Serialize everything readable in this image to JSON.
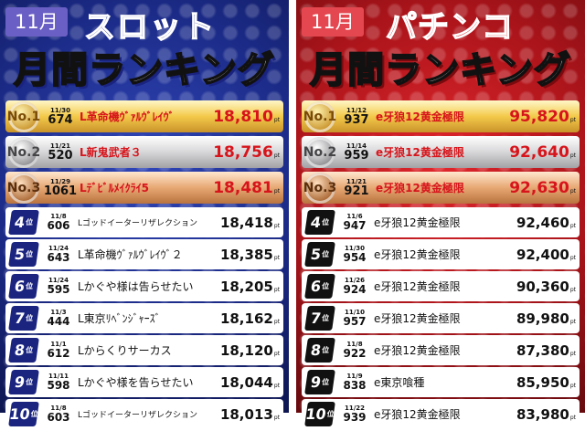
{
  "slot": {
    "month": "11月",
    "title_line1": "スロット",
    "title_line2": "月間ランキング",
    "unit": "pt",
    "rank_suffix": "位",
    "entries": [
      {
        "rank": "1",
        "medal": "No.1",
        "date": "11/30",
        "count": "674",
        "machine": "L革命機ｳﾞｧﾙｳﾞﾚｲｳﾞ",
        "points": "18,810"
      },
      {
        "rank": "2",
        "medal": "No.2",
        "date": "11/21",
        "count": "520",
        "machine": "L新鬼武者３",
        "points": "18,756"
      },
      {
        "rank": "3",
        "medal": "No.3",
        "date": "11/29",
        "count": "1061",
        "machine": "Lﾃﾞﾋﾞﾙﾒｲｸﾗｲ5",
        "points": "18,481"
      },
      {
        "rank": "4",
        "date": "11/8",
        "count": "606",
        "machine": "Lゴッドイーターリザレクション",
        "points": "18,418"
      },
      {
        "rank": "5",
        "date": "11/24",
        "count": "643",
        "machine": "L革命機ｳﾞｧﾙｳﾞﾚｲｳﾞ２",
        "points": "18,385"
      },
      {
        "rank": "6",
        "date": "11/24",
        "count": "595",
        "machine": "Lかぐや様は告らせたい",
        "points": "18,205"
      },
      {
        "rank": "7",
        "date": "11/3",
        "count": "444",
        "machine": "L東京ﾘﾍﾞﾝｼﾞｬｰｽﾞ",
        "points": "18,162"
      },
      {
        "rank": "8",
        "date": "11/1",
        "count": "612",
        "machine": "Lからくりサーカス",
        "points": "18,120"
      },
      {
        "rank": "9",
        "date": "11/11",
        "count": "598",
        "machine": "Lかぐや様を告らせたい",
        "points": "18,044"
      },
      {
        "rank": "10",
        "date": "11/8",
        "count": "603",
        "machine": "Lゴッドイーターリザレクション",
        "points": "18,013"
      }
    ]
  },
  "pachinko": {
    "month": "11月",
    "title_line1": "パチンコ",
    "title_line2": "月間ランキング",
    "unit": "pt",
    "rank_suffix": "位",
    "entries": [
      {
        "rank": "1",
        "medal": "No.1",
        "date": "11/12",
        "count": "937",
        "machine": "e牙狼12黄金極限",
        "points": "95,820"
      },
      {
        "rank": "2",
        "medal": "No.2",
        "date": "11/14",
        "count": "959",
        "machine": "e牙狼12黄金極限",
        "points": "92,640"
      },
      {
        "rank": "3",
        "medal": "No.3",
        "date": "11/21",
        "count": "921",
        "machine": "e牙狼12黄金極限",
        "points": "92,630"
      },
      {
        "rank": "4",
        "date": "11/6",
        "count": "947",
        "machine": "e牙狼12黄金極限",
        "points": "92,460"
      },
      {
        "rank": "5",
        "date": "11/30",
        "count": "954",
        "machine": "e牙狼12黄金極限",
        "points": "92,400"
      },
      {
        "rank": "6",
        "date": "11/26",
        "count": "924",
        "machine": "e牙狼12黄金極限",
        "points": "90,360"
      },
      {
        "rank": "7",
        "date": "11/10",
        "count": "957",
        "machine": "e牙狼12黄金極限",
        "points": "89,980"
      },
      {
        "rank": "8",
        "date": "11/8",
        "count": "922",
        "machine": "e牙狼12黄金極限",
        "points": "87,380"
      },
      {
        "rank": "9",
        "date": "11/9",
        "count": "838",
        "machine": "e東京喰種",
        "points": "85,950"
      },
      {
        "rank": "10",
        "date": "11/22",
        "count": "939",
        "machine": "e牙狼12黄金極限",
        "points": "83,980"
      }
    ]
  }
}
